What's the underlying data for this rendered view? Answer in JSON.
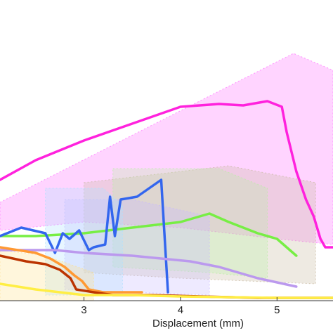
{
  "chart_data": {
    "type": "line",
    "title": "",
    "xlabel": "Displacement (mm)",
    "ylabel": "",
    "xlim": [
      2.13,
      5.58
    ],
    "ylim": [
      0,
      1
    ],
    "x_ticks": [
      {
        "value": 3,
        "label": "3"
      },
      {
        "value": 4,
        "label": "4"
      },
      {
        "value": 5,
        "label": "5"
      }
    ],
    "grid": false,
    "legend": "none",
    "bands": [
      {
        "color": "#ff66ff",
        "opacity": 0.28,
        "upper": [
          [
            2.13,
            0.35
          ],
          [
            5.17,
            0.88
          ],
          [
            5.58,
            0.82
          ]
        ],
        "lower": [
          [
            2.13,
            0.25
          ],
          [
            3.0,
            0.28
          ],
          [
            4.0,
            0.26
          ],
          [
            5.0,
            0.22
          ],
          [
            5.58,
            0.2
          ]
        ]
      },
      {
        "color": "#c8b8a0",
        "opacity": 0.3,
        "upper": [
          [
            3.0,
            0.42
          ],
          [
            4.5,
            0.48
          ],
          [
            5.4,
            0.42
          ]
        ],
        "lower": [
          [
            3.0,
            0.1
          ],
          [
            4.0,
            0.08
          ],
          [
            5.4,
            0.06
          ]
        ]
      },
      {
        "color": "#b6f0a0",
        "opacity": 0.28,
        "upper": [
          [
            3.3,
            0.47
          ],
          [
            4.4,
            0.47
          ],
          [
            4.9,
            0.4
          ]
        ],
        "lower": [
          [
            3.3,
            0.12
          ],
          [
            4.3,
            0.1
          ],
          [
            4.9,
            0.08
          ]
        ]
      },
      {
        "color": "#c8b8ff",
        "opacity": 0.3,
        "upper": [
          [
            2.8,
            0.36
          ],
          [
            3.5,
            0.36
          ],
          [
            4.3,
            0.3
          ]
        ],
        "lower": [
          [
            2.8,
            0.04
          ],
          [
            3.5,
            0.03
          ],
          [
            4.3,
            0.02
          ]
        ]
      },
      {
        "color": "#aee0ff",
        "opacity": 0.3,
        "upper": [
          [
            2.6,
            0.4
          ],
          [
            3.2,
            0.4
          ],
          [
            3.4,
            0.34
          ]
        ],
        "lower": [
          [
            2.6,
            0.02
          ],
          [
            3.2,
            0.02
          ],
          [
            3.4,
            0.02
          ]
        ]
      },
      {
        "color": "#ffe08a",
        "opacity": 0.3,
        "upper": [
          [
            2.13,
            0.18
          ],
          [
            2.6,
            0.16
          ],
          [
            3.1,
            0.1
          ]
        ],
        "lower": [
          [
            2.13,
            0.0
          ],
          [
            2.6,
            0.0
          ],
          [
            3.1,
            0.0
          ]
        ]
      }
    ],
    "series": [
      {
        "color": "#ff22dd",
        "width": 3.5,
        "points": [
          [
            2.13,
            0.43
          ],
          [
            2.5,
            0.5
          ],
          [
            3.0,
            0.57
          ],
          [
            3.5,
            0.63
          ],
          [
            4.0,
            0.69
          ],
          [
            4.4,
            0.7
          ],
          [
            4.65,
            0.695
          ],
          [
            4.9,
            0.71
          ],
          [
            5.05,
            0.69
          ],
          [
            5.1,
            0.6
          ],
          [
            5.2,
            0.46
          ],
          [
            5.3,
            0.36
          ],
          [
            5.38,
            0.3
          ],
          [
            5.45,
            0.22
          ],
          [
            5.5,
            0.19
          ],
          [
            5.58,
            0.19
          ]
        ]
      },
      {
        "color": "#77ee44",
        "width": 3.5,
        "points": [
          [
            2.13,
            0.23
          ],
          [
            2.5,
            0.23
          ],
          [
            3.0,
            0.24
          ],
          [
            3.5,
            0.26
          ],
          [
            4.0,
            0.28
          ],
          [
            4.3,
            0.31
          ],
          [
            4.5,
            0.28
          ],
          [
            4.8,
            0.24
          ],
          [
            5.0,
            0.22
          ],
          [
            5.1,
            0.19
          ],
          [
            5.2,
            0.16
          ]
        ]
      },
      {
        "color": "#3366ee",
        "width": 3.5,
        "points": [
          [
            2.13,
            0.23
          ],
          [
            2.35,
            0.26
          ],
          [
            2.6,
            0.24
          ],
          [
            2.7,
            0.17
          ],
          [
            2.78,
            0.24
          ],
          [
            2.85,
            0.22
          ],
          [
            2.95,
            0.25
          ],
          [
            3.05,
            0.18
          ],
          [
            3.1,
            0.19
          ],
          [
            3.22,
            0.2
          ],
          [
            3.27,
            0.37
          ],
          [
            3.32,
            0.23
          ],
          [
            3.38,
            0.36
          ],
          [
            3.55,
            0.37
          ],
          [
            3.8,
            0.43
          ],
          [
            3.87,
            0.03
          ]
        ]
      },
      {
        "color": "#bb99ee",
        "width": 3.5,
        "points": [
          [
            2.13,
            0.18
          ],
          [
            2.7,
            0.18
          ],
          [
            3.0,
            0.17
          ],
          [
            3.5,
            0.16
          ],
          [
            3.8,
            0.15
          ],
          [
            4.1,
            0.14
          ],
          [
            4.4,
            0.12
          ],
          [
            4.8,
            0.08
          ],
          [
            5.2,
            0.05
          ]
        ]
      },
      {
        "color": "#ff9933",
        "width": 3.5,
        "points": [
          [
            2.13,
            0.19
          ],
          [
            2.5,
            0.17
          ],
          [
            2.65,
            0.15
          ],
          [
            2.8,
            0.12
          ],
          [
            2.9,
            0.09
          ],
          [
            2.98,
            0.07
          ],
          [
            3.05,
            0.04
          ],
          [
            3.2,
            0.03
          ],
          [
            3.6,
            0.03
          ]
        ]
      },
      {
        "color": "#bb3300",
        "width": 3.5,
        "points": [
          [
            2.13,
            0.16
          ],
          [
            2.4,
            0.14
          ],
          [
            2.6,
            0.13
          ],
          [
            2.75,
            0.11
          ],
          [
            2.86,
            0.08
          ],
          [
            2.92,
            0.04
          ],
          [
            3.1,
            0.03
          ],
          [
            3.3,
            0.02
          ],
          [
            3.7,
            0.02
          ],
          [
            4.2,
            0.015
          ],
          [
            4.8,
            0.01
          ],
          [
            5.58,
            0.01
          ]
        ]
      },
      {
        "color": "#ffee44",
        "width": 3.5,
        "points": [
          [
            2.13,
            0.06
          ],
          [
            2.5,
            0.04
          ],
          [
            3.0,
            0.02
          ],
          [
            3.5,
            0.02
          ],
          [
            4.0,
            0.015
          ],
          [
            5.0,
            0.01
          ],
          [
            5.58,
            0.01
          ]
        ]
      }
    ]
  }
}
